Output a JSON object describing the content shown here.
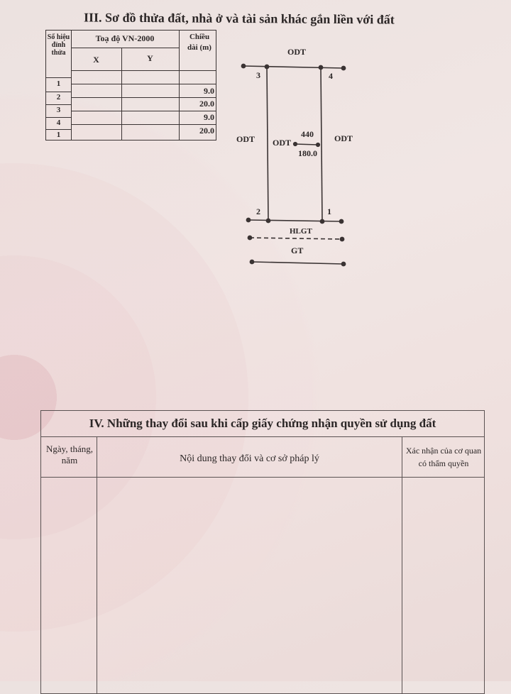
{
  "section3": {
    "title": "III. Sơ đồ thửa đất, nhà ở và tài sản khác gắn liền với đất",
    "table": {
      "col_point": "Số hiệu đỉnh thửa",
      "col_coords": "Toạ độ VN-2000",
      "col_x": "X",
      "col_y": "Y",
      "col_length": "Chiều dài (m)",
      "points": [
        "1",
        "2",
        "3",
        "4",
        "1"
      ],
      "lengths": [
        "9.0",
        "20.0",
        "9.0",
        "20.0"
      ]
    },
    "diagram": {
      "top_neighbor": "ODT",
      "left_neighbor": "ODT",
      "right_neighbor": "ODT",
      "land_type": "ODT",
      "parcel_number": "440",
      "area": "180.0",
      "vertices": [
        "1",
        "2",
        "3",
        "4"
      ],
      "road_safety_line": "HLGT",
      "road": "GT"
    }
  },
  "section4": {
    "title": "IV. Những thay đổi sau khi cấp giấy chứng nhận quyền sử dụng đất",
    "col_date": "Ngày, tháng, năm",
    "col_content": "Nội dung thay đổi và cơ sở pháp lý",
    "col_confirm": "Xác nhận của cơ quan có thẩm quyền"
  }
}
